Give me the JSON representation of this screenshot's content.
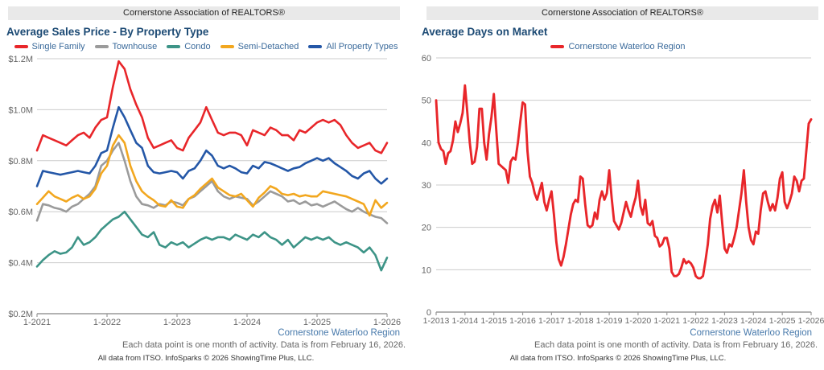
{
  "panels": [
    {
      "header": "Cornerstone Association of REALTORS®",
      "title": "Average Sales Price - By Property Type",
      "region_label": "Cornerstone Waterloo Region",
      "footnote_activity": "Each data point is one month of activity. Data is from February 16, 2026.",
      "footnote_source": "All data from ITSO. InfoSparks © 2026 ShowingTime Plus, LLC."
    },
    {
      "header": "Cornerstone Association of REALTORS®",
      "title": "Average Days on Market",
      "region_label": "Cornerstone Waterloo Region",
      "footnote_activity": "Each data point is one month of activity. Data is from February 16, 2026.",
      "footnote_source": "All data from ITSO. InfoSparks © 2026 ShowingTime Plus, LLC."
    }
  ],
  "colors": {
    "accent_red": "#e8262a",
    "gray": "#9b9b9b",
    "teal": "#3d9487",
    "gold": "#f2a71f",
    "blue": "#2457a7",
    "title_navy": "#1c4a74",
    "legend_text": "#3a6a9b",
    "region_blue": "#4779ab",
    "grid": "#cccccc",
    "axis": "#999999",
    "axis_text": "#666666"
  },
  "chart_data": [
    {
      "type": "line",
      "title": "Average Sales Price - By Property Type",
      "x_interval": "monthly",
      "x_range": [
        "1-2021",
        "1-2026"
      ],
      "x_tick_labels": [
        "1-2021",
        "1-2022",
        "1-2023",
        "1-2024",
        "1-2025",
        "1-2026"
      ],
      "y_tick_labels": [
        "$1.2M",
        "$1.0M",
        "$0.8M",
        "$0.6M",
        "$0.4M",
        "$0.2M"
      ],
      "ylim": [
        0.2,
        1.2
      ],
      "y_unit": "millions of dollars",
      "grid": true,
      "legend_position": "top",
      "series": [
        {
          "name": "Single Family",
          "color": "#e8262a",
          "values": [
            0.84,
            0.9,
            0.89,
            0.88,
            0.87,
            0.86,
            0.88,
            0.9,
            0.91,
            0.89,
            0.93,
            0.96,
            0.97,
            1.09,
            1.19,
            1.16,
            1.08,
            1.02,
            0.97,
            0.89,
            0.85,
            0.86,
            0.87,
            0.88,
            0.85,
            0.84,
            0.89,
            0.92,
            0.95,
            1.01,
            0.96,
            0.91,
            0.9,
            0.91,
            0.91,
            0.9,
            0.86,
            0.92,
            0.91,
            0.9,
            0.93,
            0.92,
            0.9,
            0.9,
            0.88,
            0.92,
            0.91,
            0.93,
            0.95,
            0.96,
            0.95,
            0.96,
            0.94,
            0.9,
            0.87,
            0.85,
            0.86,
            0.87,
            0.84,
            0.83,
            0.87
          ]
        },
        {
          "name": "Townhouse",
          "color": "#9b9b9b",
          "values": [
            0.565,
            0.63,
            0.625,
            0.615,
            0.61,
            0.6,
            0.62,
            0.63,
            0.65,
            0.67,
            0.7,
            0.78,
            0.8,
            0.84,
            0.87,
            0.8,
            0.72,
            0.66,
            0.63,
            0.625,
            0.615,
            0.63,
            0.625,
            0.64,
            0.635,
            0.625,
            0.65,
            0.66,
            0.68,
            0.7,
            0.72,
            0.68,
            0.66,
            0.65,
            0.66,
            0.655,
            0.65,
            0.625,
            0.64,
            0.66,
            0.68,
            0.67,
            0.66,
            0.64,
            0.645,
            0.63,
            0.64,
            0.625,
            0.63,
            0.62,
            0.63,
            0.64,
            0.625,
            0.61,
            0.6,
            0.615,
            0.6,
            0.59,
            0.58,
            0.575,
            0.555
          ]
        },
        {
          "name": "Condo",
          "color": "#3d9487",
          "values": [
            0.385,
            0.41,
            0.43,
            0.445,
            0.435,
            0.44,
            0.46,
            0.5,
            0.47,
            0.48,
            0.5,
            0.53,
            0.55,
            0.57,
            0.58,
            0.6,
            0.57,
            0.54,
            0.51,
            0.5,
            0.52,
            0.47,
            0.46,
            0.48,
            0.47,
            0.48,
            0.46,
            0.475,
            0.49,
            0.5,
            0.49,
            0.5,
            0.5,
            0.49,
            0.51,
            0.5,
            0.49,
            0.51,
            0.5,
            0.52,
            0.5,
            0.49,
            0.47,
            0.49,
            0.46,
            0.48,
            0.5,
            0.49,
            0.5,
            0.49,
            0.5,
            0.48,
            0.47,
            0.48,
            0.47,
            0.46,
            0.44,
            0.46,
            0.43,
            0.37,
            0.42
          ]
        },
        {
          "name": "Semi-Detached",
          "color": "#f2a71f",
          "values": [
            0.63,
            0.655,
            0.68,
            0.66,
            0.65,
            0.64,
            0.655,
            0.665,
            0.65,
            0.66,
            0.69,
            0.75,
            0.78,
            0.86,
            0.9,
            0.87,
            0.78,
            0.72,
            0.68,
            0.66,
            0.645,
            0.625,
            0.62,
            0.645,
            0.62,
            0.615,
            0.65,
            0.665,
            0.69,
            0.71,
            0.73,
            0.695,
            0.68,
            0.665,
            0.66,
            0.67,
            0.645,
            0.62,
            0.655,
            0.675,
            0.7,
            0.69,
            0.67,
            0.665,
            0.67,
            0.66,
            0.665,
            0.66,
            0.66,
            0.68,
            0.675,
            0.67,
            0.665,
            0.66,
            0.65,
            0.64,
            0.63,
            0.585,
            0.645,
            0.615,
            0.635
          ]
        },
        {
          "name": "All Property Types",
          "color": "#2457a7",
          "values": [
            0.7,
            0.76,
            0.755,
            0.75,
            0.745,
            0.75,
            0.755,
            0.76,
            0.755,
            0.75,
            0.78,
            0.83,
            0.84,
            0.93,
            1.01,
            0.97,
            0.92,
            0.87,
            0.85,
            0.78,
            0.755,
            0.75,
            0.755,
            0.76,
            0.755,
            0.73,
            0.76,
            0.77,
            0.8,
            0.84,
            0.82,
            0.78,
            0.77,
            0.78,
            0.77,
            0.755,
            0.75,
            0.78,
            0.77,
            0.795,
            0.79,
            0.78,
            0.77,
            0.76,
            0.77,
            0.775,
            0.79,
            0.8,
            0.81,
            0.8,
            0.81,
            0.79,
            0.775,
            0.76,
            0.74,
            0.73,
            0.75,
            0.76,
            0.73,
            0.71,
            0.73
          ]
        }
      ]
    },
    {
      "type": "line",
      "title": "Average Days on Market",
      "x_interval": "monthly",
      "x_range": [
        "1-2013",
        "1-2026"
      ],
      "x_tick_labels": [
        "1-2013",
        "1-2014",
        "1-2015",
        "1-2016",
        "1-2017",
        "1-2018",
        "1-2019",
        "1-2020",
        "1-2021",
        "1-2022",
        "1-2023",
        "1-2024",
        "1-2025",
        "1-2026"
      ],
      "y_tick_labels": [
        "60",
        "50",
        "40",
        "30",
        "20",
        "10",
        "0"
      ],
      "ylim": [
        0,
        60
      ],
      "y_unit": "days",
      "grid": true,
      "legend_position": "top",
      "series": [
        {
          "name": "Cornerstone Waterloo Region",
          "color": "#e8262a",
          "values": [
            50,
            40,
            38.5,
            38,
            35,
            37.5,
            38,
            40.5,
            45,
            42.5,
            44.5,
            47,
            53.5,
            47,
            40,
            35,
            35.5,
            39,
            48,
            48,
            40,
            36,
            42,
            46,
            51.5,
            43,
            35,
            34.5,
            34,
            33.5,
            30.5,
            35.5,
            36.5,
            36,
            40,
            45,
            49.5,
            49,
            38,
            32,
            30.5,
            28,
            26.5,
            28.5,
            30.5,
            26,
            24,
            26.5,
            28.5,
            23,
            16.5,
            12.5,
            11,
            13,
            16,
            19.5,
            23,
            25.5,
            26.5,
            26,
            32,
            31.5,
            25.5,
            20.5,
            20,
            20.5,
            23.5,
            22,
            26.5,
            28.5,
            26.5,
            28,
            33.5,
            27,
            21.5,
            20.5,
            19.5,
            21,
            23.5,
            26,
            24,
            22.5,
            25,
            27,
            31,
            25,
            23,
            26.5,
            21,
            20.5,
            21.5,
            18,
            17.5,
            15.5,
            16,
            17.5,
            17.5,
            15,
            9.5,
            8.5,
            8.5,
            9,
            10.5,
            12.5,
            11.5,
            12,
            11.5,
            10.5,
            8.5,
            8,
            8,
            8.5,
            12,
            16,
            22,
            25,
            26.5,
            23.5,
            27.5,
            21,
            15,
            14,
            16,
            15.5,
            17.5,
            20,
            24,
            28,
            33.5,
            26,
            20,
            17,
            16,
            19,
            18.5,
            24,
            28,
            28.5,
            26,
            24,
            25.5,
            24,
            27,
            31.5,
            33,
            26,
            24.5,
            26,
            28,
            32,
            31,
            28.5,
            31,
            31.5,
            38,
            44.5,
            45.5
          ]
        }
      ]
    }
  ]
}
